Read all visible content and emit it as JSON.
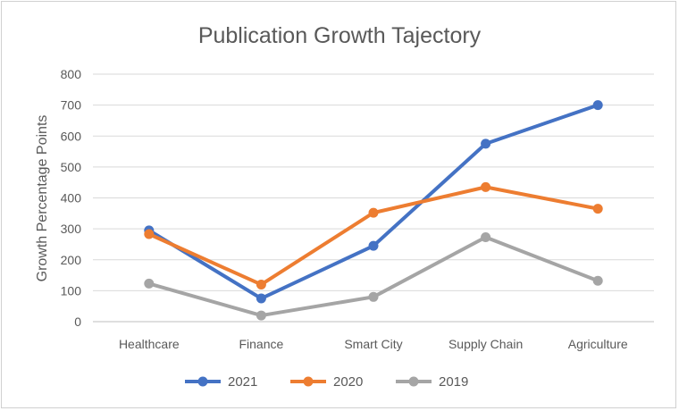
{
  "chart_data": {
    "type": "line",
    "title": "Publication Growth Tajectory",
    "xlabel": "",
    "ylabel": "Growth Percentage Points",
    "categories": [
      "Healthcare",
      "Finance",
      "Smart City",
      "Supply Chain",
      "Agriculture"
    ],
    "ylim": [
      0,
      800
    ],
    "yticks": [
      0,
      100,
      200,
      300,
      400,
      500,
      600,
      700,
      800
    ],
    "grid": true,
    "legend_position": "bottom",
    "series": [
      {
        "name": "2021",
        "color": "#4472c4",
        "values": [
          295,
          75,
          245,
          575,
          700
        ]
      },
      {
        "name": "2020",
        "color": "#ed7d31",
        "values": [
          283,
          120,
          352,
          435,
          365
        ]
      },
      {
        "name": "2019",
        "color": "#a5a5a5",
        "values": [
          123,
          20,
          80,
          273,
          132
        ]
      }
    ]
  }
}
